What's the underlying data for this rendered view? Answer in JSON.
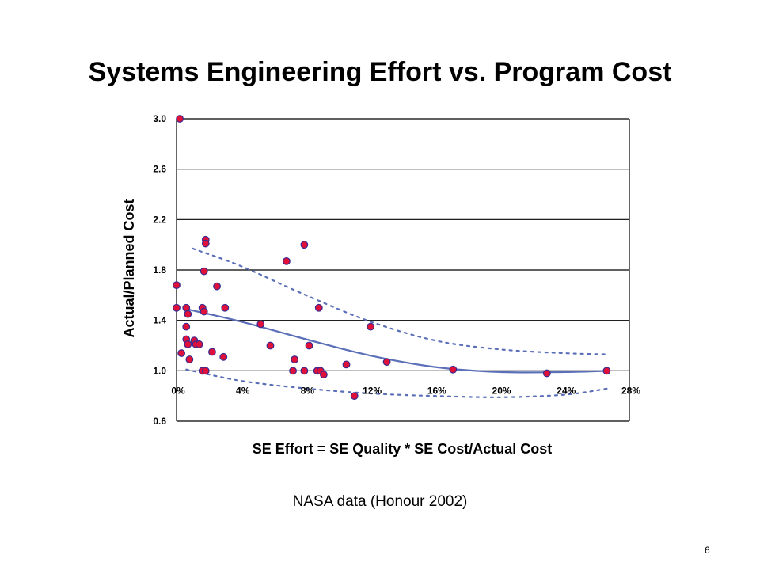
{
  "slide": {
    "title": "Systems Engineering Effort vs. Program Cost",
    "caption": "NASA data (Honour 2002)",
    "page_number": "6"
  },
  "colors": {
    "marker_fill": "#e0103a",
    "marker_edge": "#3b2a8f",
    "trend": "#5b6fb8",
    "grid": "#000000"
  },
  "chart_data": {
    "type": "scatter",
    "title": "",
    "xlabel": "SE Effort = SE Quality * SE Cost/Actual Cost",
    "ylabel": "Actual/Planned Cost",
    "xlim": [
      0,
      28
    ],
    "ylim": [
      0.6,
      3.0
    ],
    "x_ticks": [
      0,
      4,
      8,
      12,
      16,
      20,
      24,
      28
    ],
    "x_tick_labels": [
      "0%",
      "4%",
      "8%",
      "12%",
      "16%",
      "20%",
      "24%",
      "28%"
    ],
    "y_ticks": [
      0.6,
      1.0,
      1.4,
      1.8,
      2.2,
      2.6,
      3.0
    ],
    "y_tick_labels": [
      "0.6",
      "1.0",
      "1.4",
      "1.8",
      "2.2",
      "2.6",
      "3.0"
    ],
    "grid": "horizontal",
    "legend": "none",
    "series": [
      {
        "kind": "points",
        "points": [
          [
            0.2,
            3.0
          ],
          [
            0.0,
            1.68
          ],
          [
            0.0,
            1.5
          ],
          [
            0.3,
            1.14
          ],
          [
            0.6,
            1.5
          ],
          [
            0.7,
            1.45
          ],
          [
            0.6,
            1.35
          ],
          [
            0.6,
            1.25
          ],
          [
            0.7,
            1.21
          ],
          [
            0.8,
            1.09
          ],
          [
            1.1,
            1.24
          ],
          [
            1.2,
            1.21
          ],
          [
            1.4,
            1.21
          ],
          [
            1.6,
            1.5
          ],
          [
            1.6,
            1.0
          ],
          [
            1.7,
            1.79
          ],
          [
            1.7,
            1.47
          ],
          [
            1.8,
            1.0
          ],
          [
            1.8,
            2.04
          ],
          [
            1.8,
            2.01
          ],
          [
            2.2,
            1.15
          ],
          [
            2.5,
            1.67
          ],
          [
            2.9,
            1.11
          ],
          [
            3.0,
            1.5
          ],
          [
            5.2,
            1.37
          ],
          [
            5.8,
            1.2
          ],
          [
            6.8,
            1.87
          ],
          [
            7.2,
            1.0
          ],
          [
            7.3,
            1.09
          ],
          [
            7.9,
            1.0
          ],
          [
            7.9,
            2.0
          ],
          [
            8.2,
            1.2
          ],
          [
            8.7,
            1.0
          ],
          [
            8.8,
            1.5
          ],
          [
            8.9,
            1.0
          ],
          [
            9.1,
            0.97
          ],
          [
            10.5,
            1.05
          ],
          [
            11.0,
            0.8
          ],
          [
            12.0,
            1.35
          ],
          [
            13.0,
            1.07
          ],
          [
            17.1,
            1.01
          ],
          [
            22.9,
            0.98
          ],
          [
            26.6,
            1.0
          ]
        ]
      },
      {
        "kind": "trend",
        "style": "solid",
        "points": [
          [
            0.6,
            1.49
          ],
          [
            4,
            1.39
          ],
          [
            8,
            1.25
          ],
          [
            12,
            1.12
          ],
          [
            16,
            1.03
          ],
          [
            20,
            0.99
          ],
          [
            24,
            0.99
          ],
          [
            26.7,
            1.0
          ]
        ]
      },
      {
        "kind": "upper-bound",
        "style": "dotted",
        "points": [
          [
            1.0,
            1.97
          ],
          [
            4,
            1.83
          ],
          [
            8,
            1.6
          ],
          [
            12,
            1.39
          ],
          [
            16,
            1.24
          ],
          [
            20,
            1.17
          ],
          [
            24,
            1.14
          ],
          [
            26.7,
            1.13
          ]
        ]
      },
      {
        "kind": "lower-bound",
        "style": "dotted",
        "points": [
          [
            0.6,
            1.01
          ],
          [
            4,
            0.92
          ],
          [
            8,
            0.86
          ],
          [
            12,
            0.82
          ],
          [
            16,
            0.8
          ],
          [
            20,
            0.79
          ],
          [
            24,
            0.81
          ],
          [
            26.7,
            0.86
          ]
        ]
      }
    ]
  }
}
